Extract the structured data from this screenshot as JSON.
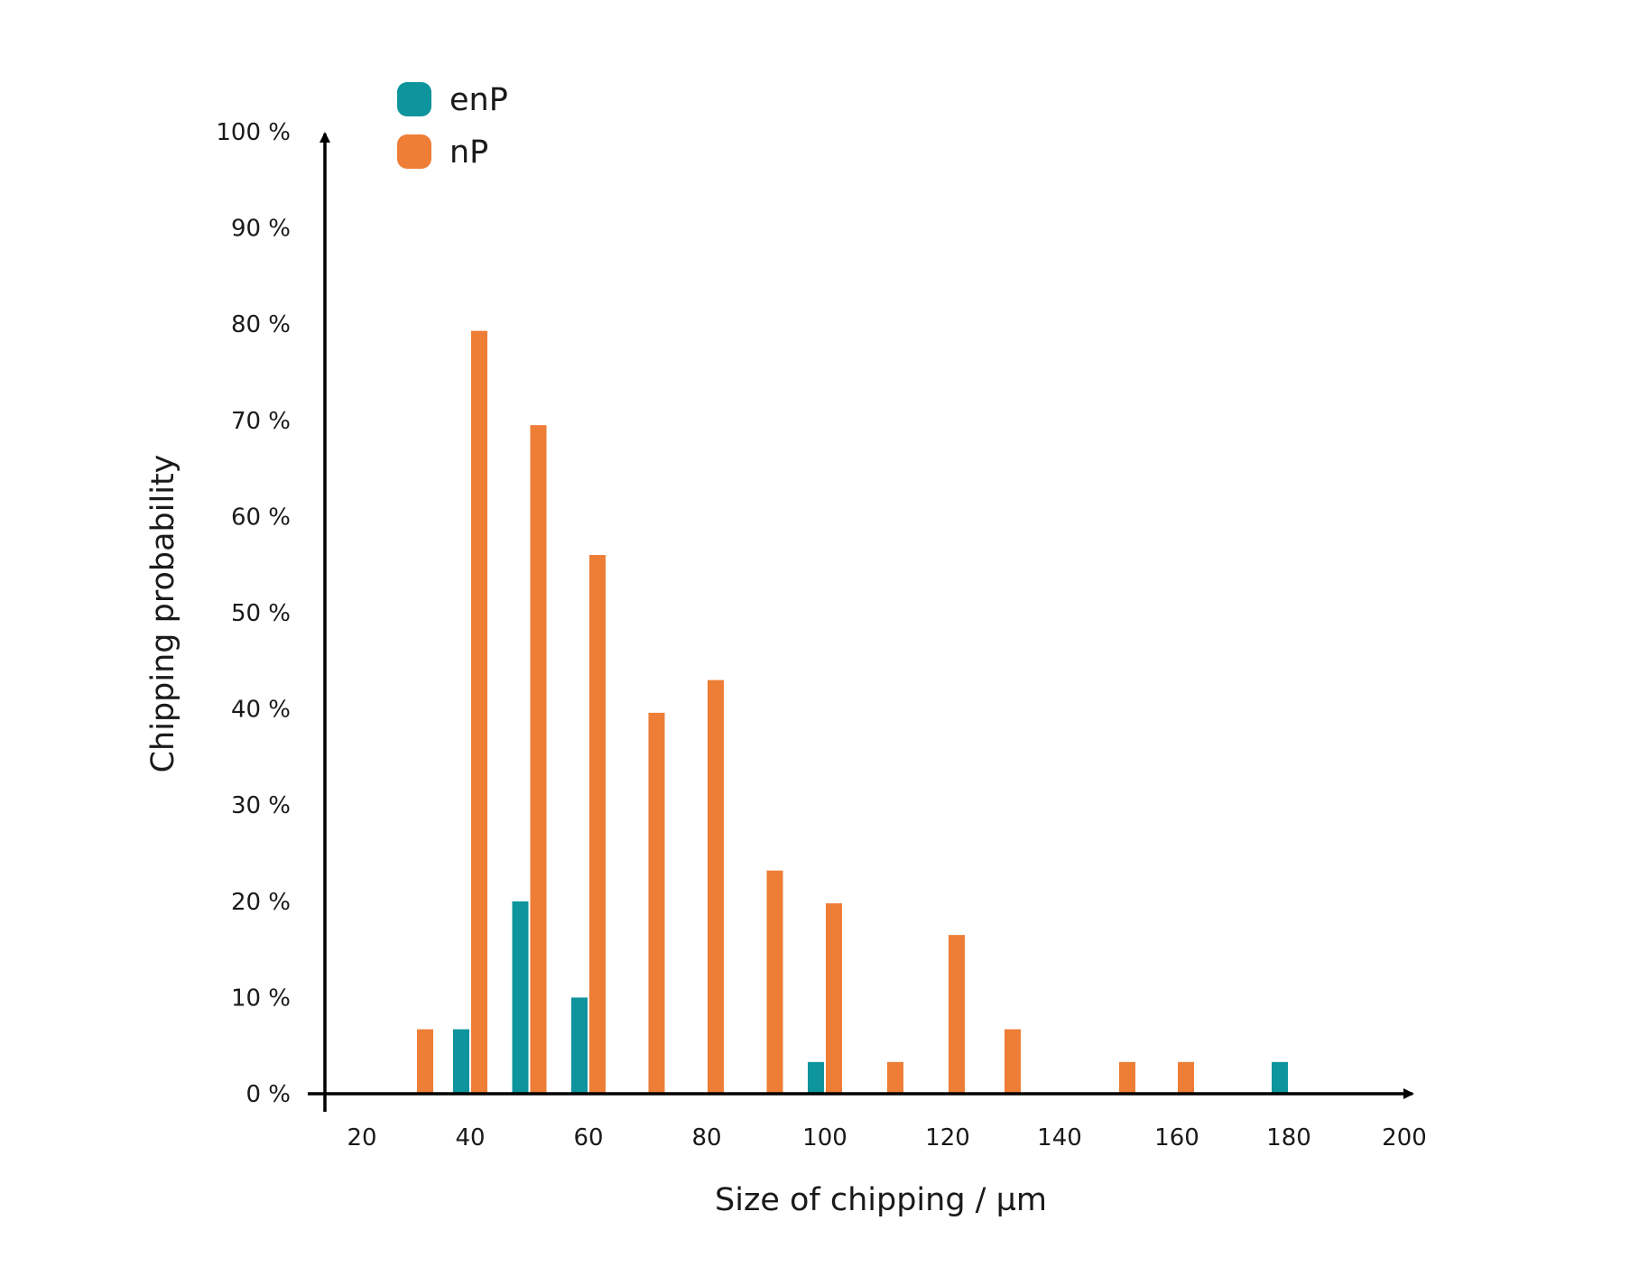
{
  "chart_data": {
    "type": "bar",
    "xlabel": "Size of chipping / µm",
    "ylabel": "Chipping probability",
    "x_ticks": [
      "20",
      "40",
      "60",
      "80",
      "100",
      "120",
      "140",
      "160",
      "180",
      "200"
    ],
    "y_ticks": [
      "0 %",
      "10 %",
      "20 %",
      "30 %",
      "40 %",
      "50 %",
      "60 %",
      "70 %",
      "80 %",
      "90 %",
      "100 %"
    ],
    "ylim": [
      0,
      100
    ],
    "grid": false,
    "legend_position": "top-left",
    "series": [
      {
        "name": "enP",
        "color": "#0e949c",
        "points": [
          {
            "x": 40,
            "y": 6.7
          },
          {
            "x": 50,
            "y": 20
          },
          {
            "x": 60,
            "y": 10
          },
          {
            "x": 100,
            "y": 3.3
          },
          {
            "x": 180,
            "y": 3.3
          }
        ]
      },
      {
        "name": "nP",
        "color": "#ee7d36",
        "points": [
          {
            "x": 30,
            "y": 6.7
          },
          {
            "x": 40,
            "y": 79.3
          },
          {
            "x": 50,
            "y": 69.5
          },
          {
            "x": 60,
            "y": 56
          },
          {
            "x": 70,
            "y": 39.6
          },
          {
            "x": 80,
            "y": 43
          },
          {
            "x": 90,
            "y": 23.2
          },
          {
            "x": 100,
            "y": 19.8
          },
          {
            "x": 110,
            "y": 3.3
          },
          {
            "x": 120,
            "y": 16.5
          },
          {
            "x": 130,
            "y": 6.7
          },
          {
            "x": 150,
            "y": 3.3
          },
          {
            "x": 160,
            "y": 3.3
          }
        ]
      }
    ]
  }
}
